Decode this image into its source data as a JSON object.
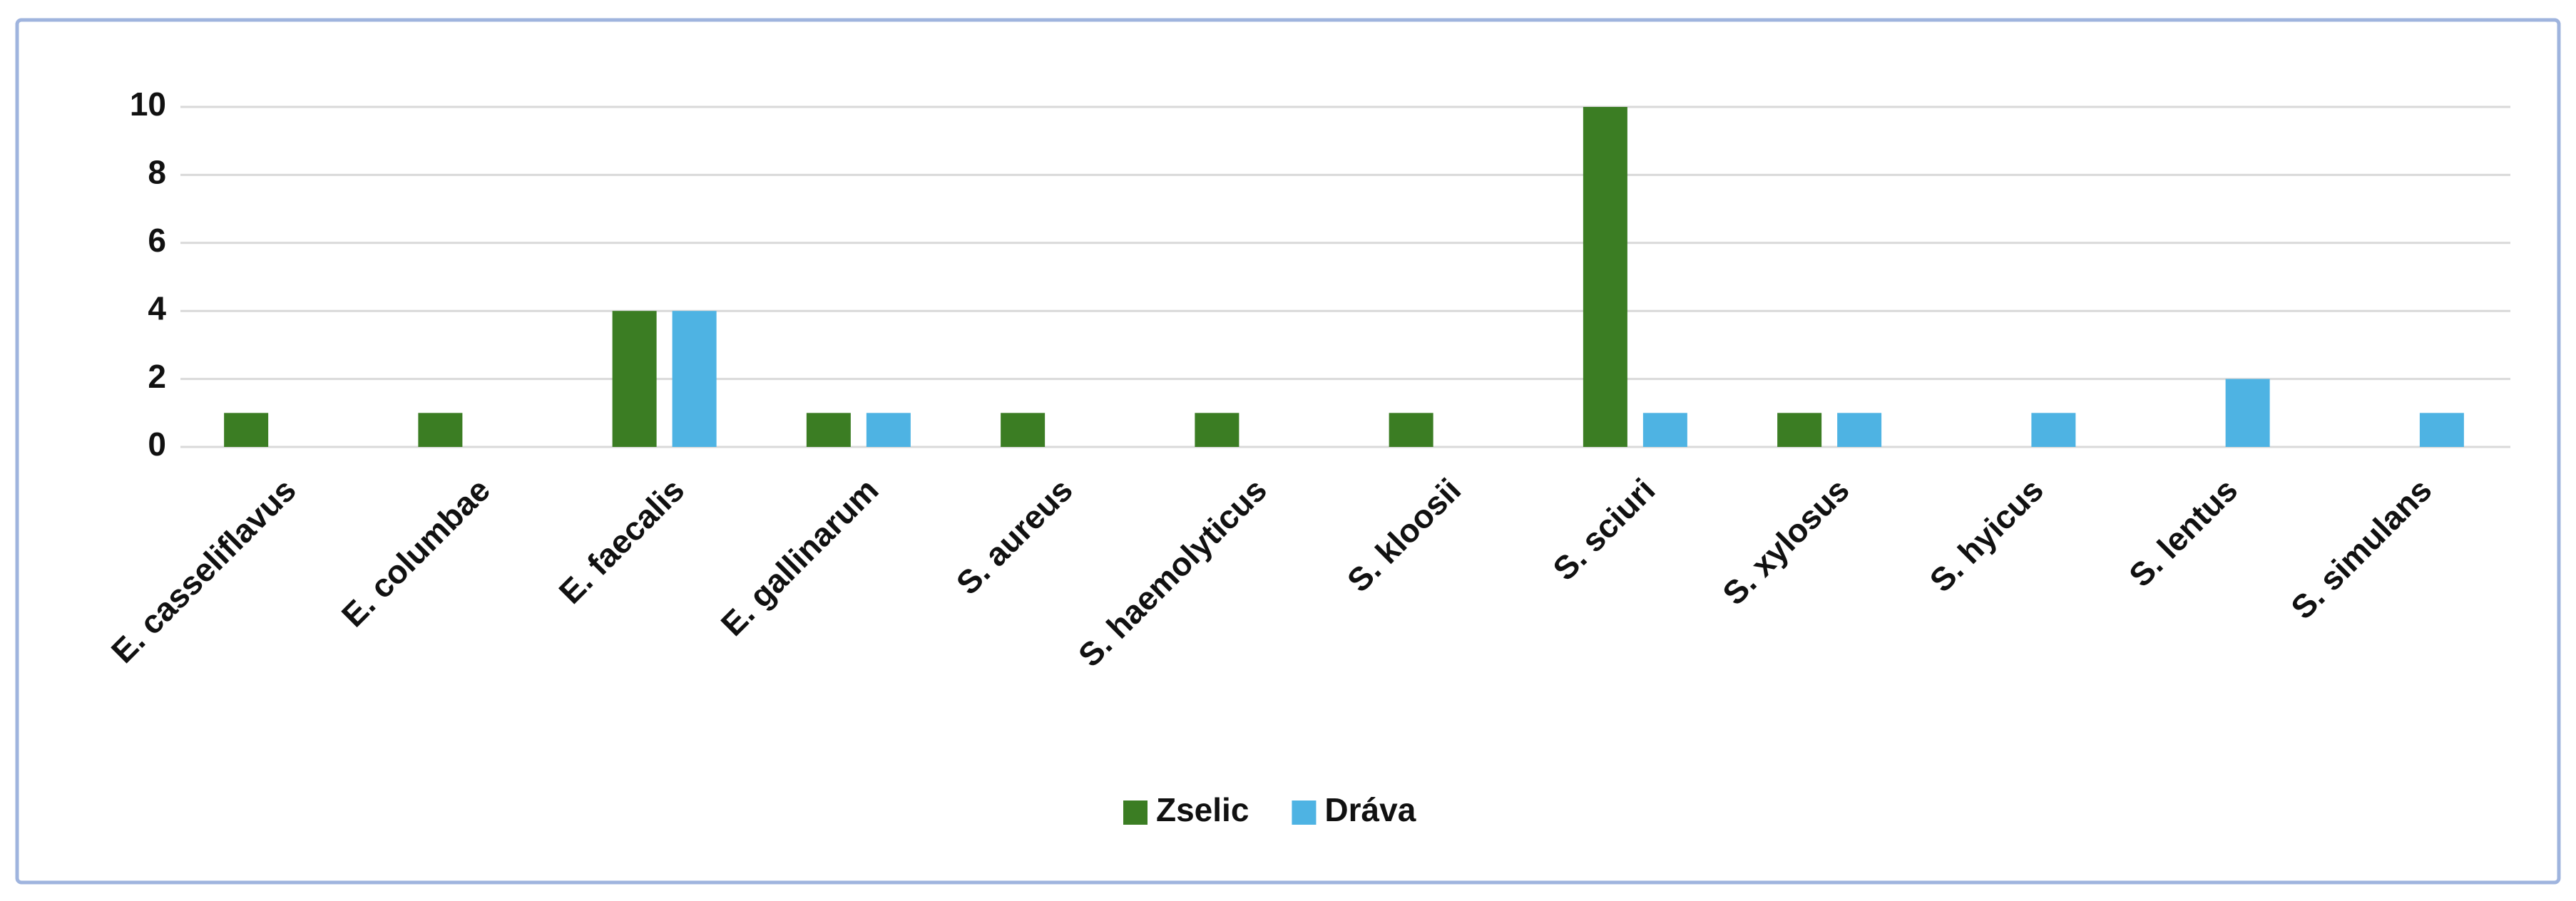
{
  "chart_data": {
    "type": "bar",
    "categories": [
      "E. casseliflavus",
      "E. columbae",
      "E. faecalis",
      "E. gallinarum",
      "S. aureus",
      "S. haemolyticus",
      "S. kloosii",
      "S. sciuri",
      "S. xylosus",
      "S. hyicus",
      "S. lentus",
      "S. simulans"
    ],
    "series": [
      {
        "name": "Zselic",
        "color": "#3b7d23",
        "values": [
          1,
          1,
          4,
          1,
          1,
          1,
          1,
          10,
          1,
          0,
          0,
          0
        ]
      },
      {
        "name": "Dráva",
        "color": "#4eb3e3",
        "values": [
          0,
          0,
          4,
          1,
          0,
          0,
          0,
          1,
          1,
          1,
          2,
          1
        ]
      }
    ],
    "ylim": [
      0,
      10
    ],
    "yticks": [
      0,
      2,
      4,
      6,
      8,
      10
    ],
    "grid": true,
    "legend": "bottom"
  }
}
